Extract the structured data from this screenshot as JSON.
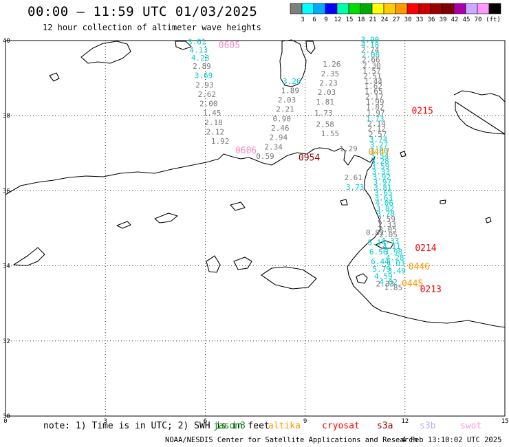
{
  "header": {
    "title": "00:00 – 11:59 UTC 01/03/2025",
    "subtitle": "12 hour collection of altimeter wave heights"
  },
  "scale": {
    "unit": "(ft)",
    "colors": [
      "#7f7f7f",
      "#00ffff",
      "#00aaff",
      "#0000ff",
      "#00ffaa",
      "#00dd00",
      "#00aa00",
      "#ffff00",
      "#ffcc00",
      "#ff9900",
      "#ff0000",
      "#cc0000",
      "#990000",
      "#7f0000",
      "#aa00aa",
      "#ccaaff",
      "#ff99ff",
      "#000000"
    ],
    "labels": [
      "3",
      "6",
      "9",
      "12",
      "15",
      "18",
      "21",
      "24",
      "27",
      "30",
      "33",
      "36",
      "39",
      "42",
      "45",
      "70"
    ]
  },
  "axes": {
    "x_ticks": [
      "0",
      "3",
      "6",
      "9",
      "12",
      "15"
    ],
    "y_ticks": [
      "40",
      "38",
      "36",
      "34",
      "32",
      "30"
    ]
  },
  "note": "note: 1) Time is in UTC; 2) SWH is in feet",
  "missions": [
    {
      "name": "jason3",
      "color": "#009900"
    },
    {
      "name": "altika",
      "color": "#ff9900"
    },
    {
      "name": "cryosat",
      "color": "#ff0000"
    },
    {
      "name": "s3a",
      "color": "#990000"
    },
    {
      "name": "s3b",
      "color": "#bbaaee"
    },
    {
      "name": "swot",
      "color": "#ff99dd"
    }
  ],
  "footer": "NOAA/NESDIS Center for Satellite Applications and Research",
  "timestamp": "4 Feb 13:10:02 UTC 2025",
  "pass_labels": [
    {
      "text": "0605",
      "color": "#ff88cc",
      "lon": 6.4,
      "lat": 39.8
    },
    {
      "text": "0606",
      "color": "#ff88cc",
      "lon": 6.9,
      "lat": 37.0
    },
    {
      "text": "0954",
      "color": "#990000",
      "lon": 8.8,
      "lat": 36.8
    },
    {
      "text": "0215",
      "color": "#ff0000",
      "lon": 12.2,
      "lat": 38.05
    },
    {
      "text": "0447",
      "color": "#ff9900",
      "lon": 10.9,
      "lat": 36.95
    },
    {
      "text": "0214",
      "color": "#ff0000",
      "lon": 12.3,
      "lat": 34.4
    },
    {
      "text": "0446",
      "color": "#ff9900",
      "lon": 12.1,
      "lat": 33.9
    },
    {
      "text": "0445",
      "color": "#ff9900",
      "lon": 11.9,
      "lat": 33.45
    },
    {
      "text": "0213",
      "color": "#ff0000",
      "lon": 12.45,
      "lat": 33.3
    }
  ],
  "wave_heights": [
    {
      "v": "3.61",
      "c": "#00cccc",
      "lon": 5.75,
      "lat": 39.9
    },
    {
      "v": "4.13",
      "c": "#00cccc",
      "lon": 5.8,
      "lat": 39.68
    },
    {
      "v": "4.28",
      "c": "#00cccc",
      "lon": 5.85,
      "lat": 39.47
    },
    {
      "v": "2.89",
      "c": "#777777",
      "lon": 5.9,
      "lat": 39.25
    },
    {
      "v": "3.69",
      "c": "#00cccc",
      "lon": 5.95,
      "lat": 39.0
    },
    {
      "v": "2.93",
      "c": "#777777",
      "lon": 5.98,
      "lat": 38.75
    },
    {
      "v": "2.62",
      "c": "#777777",
      "lon": 6.05,
      "lat": 38.5
    },
    {
      "v": "2.00",
      "c": "#777777",
      "lon": 6.1,
      "lat": 38.25
    },
    {
      "v": "1.45",
      "c": "#777777",
      "lon": 6.2,
      "lat": 38.0
    },
    {
      "v": "2.18",
      "c": "#777777",
      "lon": 6.25,
      "lat": 37.75
    },
    {
      "v": "2.12",
      "c": "#777777",
      "lon": 6.3,
      "lat": 37.5
    },
    {
      "v": "1.92",
      "c": "#777777",
      "lon": 6.45,
      "lat": 37.25
    },
    {
      "v": "3.26",
      "c": "#00cccc",
      "lon": 8.6,
      "lat": 38.85
    },
    {
      "v": "1.89",
      "c": "#777777",
      "lon": 8.55,
      "lat": 38.6
    },
    {
      "v": "2.03",
      "c": "#777777",
      "lon": 8.45,
      "lat": 38.35
    },
    {
      "v": "2.21",
      "c": "#777777",
      "lon": 8.4,
      "lat": 38.1
    },
    {
      "v": "0.90",
      "c": "#777777",
      "lon": 8.3,
      "lat": 37.85
    },
    {
      "v": "2.46",
      "c": "#777777",
      "lon": 8.25,
      "lat": 37.6
    },
    {
      "v": "2.94",
      "c": "#777777",
      "lon": 8.2,
      "lat": 37.35
    },
    {
      "v": "2.34",
      "c": "#777777",
      "lon": 8.05,
      "lat": 37.1
    },
    {
      "v": "0.59",
      "c": "#777777",
      "lon": 7.8,
      "lat": 36.85
    },
    {
      "v": "1.26",
      "c": "#777777",
      "lon": 9.8,
      "lat": 39.3
    },
    {
      "v": "2.35",
      "c": "#777777",
      "lon": 9.75,
      "lat": 39.05
    },
    {
      "v": "2.23",
      "c": "#777777",
      "lon": 9.7,
      "lat": 38.8
    },
    {
      "v": "2.03",
      "c": "#777777",
      "lon": 9.65,
      "lat": 38.55
    },
    {
      "v": "1.81",
      "c": "#777777",
      "lon": 9.6,
      "lat": 38.3
    },
    {
      "v": "1.73",
      "c": "#777777",
      "lon": 9.55,
      "lat": 38.0
    },
    {
      "v": "2.58",
      "c": "#777777",
      "lon": 9.6,
      "lat": 37.7
    },
    {
      "v": "1.55",
      "c": "#777777",
      "lon": 9.75,
      "lat": 37.45
    },
    {
      "v": "1.29",
      "c": "#777777",
      "lon": 10.3,
      "lat": 37.05
    },
    {
      "v": "3.90",
      "c": "#00cccc",
      "lon": 10.95,
      "lat": 39.95
    },
    {
      "v": "4.18",
      "c": "#00cccc",
      "lon": 10.95,
      "lat": 39.82
    },
    {
      "v": "2.74",
      "c": "#777777",
      "lon": 10.95,
      "lat": 39.68
    },
    {
      "v": "2.08",
      "c": "#00cccc",
      "lon": 10.97,
      "lat": 39.55
    },
    {
      "v": "2.66",
      "c": "#777777",
      "lon": 10.98,
      "lat": 39.42
    },
    {
      "v": "2.30",
      "c": "#777777",
      "lon": 11.0,
      "lat": 39.27
    },
    {
      "v": "1.57",
      "c": "#777777",
      "lon": 11.0,
      "lat": 39.12
    },
    {
      "v": "2.51",
      "c": "#777777",
      "lon": 11.02,
      "lat": 38.98
    },
    {
      "v": "1.44",
      "c": "#777777",
      "lon": 11.05,
      "lat": 38.85
    },
    {
      "v": "1.62",
      "c": "#777777",
      "lon": 11.05,
      "lat": 38.72
    },
    {
      "v": "1.65",
      "c": "#777777",
      "lon": 11.06,
      "lat": 38.58
    },
    {
      "v": "2.17",
      "c": "#777777",
      "lon": 11.08,
      "lat": 38.43
    },
    {
      "v": "1.99",
      "c": "#777777",
      "lon": 11.1,
      "lat": 38.3
    },
    {
      "v": "1.82",
      "c": "#777777",
      "lon": 11.1,
      "lat": 38.16
    },
    {
      "v": "1.97",
      "c": "#777777",
      "lon": 11.12,
      "lat": 38.0
    },
    {
      "v": "1.73",
      "c": "#00cccc",
      "lon": 11.1,
      "lat": 37.85
    },
    {
      "v": "2.14",
      "c": "#777777",
      "lon": 11.15,
      "lat": 37.72
    },
    {
      "v": "2.12",
      "c": "#777777",
      "lon": 11.15,
      "lat": 37.58
    },
    {
      "v": "2.57",
      "c": "#777777",
      "lon": 11.18,
      "lat": 37.44
    },
    {
      "v": "3.74",
      "c": "#00cccc",
      "lon": 11.2,
      "lat": 37.3
    },
    {
      "v": "3.27",
      "c": "#00cccc",
      "lon": 11.22,
      "lat": 37.15
    },
    {
      "v": "3.80",
      "c": "#00cccc",
      "lon": 11.22,
      "lat": 37.0
    },
    {
      "v": "3.54",
      "c": "#00cccc",
      "lon": 11.24,
      "lat": 36.86
    },
    {
      "v": "3.28",
      "c": "#00cccc",
      "lon": 11.25,
      "lat": 36.72
    },
    {
      "v": "3.59",
      "c": "#00cccc",
      "lon": 11.26,
      "lat": 36.58
    },
    {
      "v": "3.33",
      "c": "#00cccc",
      "lon": 11.28,
      "lat": 36.44
    },
    {
      "v": "3.92",
      "c": "#00cccc",
      "lon": 11.3,
      "lat": 36.3
    },
    {
      "v": "3.97",
      "c": "#00cccc",
      "lon": 11.32,
      "lat": 36.16
    },
    {
      "v": "3.81",
      "c": "#00cccc",
      "lon": 11.33,
      "lat": 36.02
    },
    {
      "v": "3.65",
      "c": "#00cccc",
      "lon": 11.35,
      "lat": 35.88
    },
    {
      "v": "3.63",
      "c": "#00cccc",
      "lon": 11.36,
      "lat": 35.74
    },
    {
      "v": "4.06",
      "c": "#00cccc",
      "lon": 11.38,
      "lat": 35.6
    },
    {
      "v": "3.82",
      "c": "#00cccc",
      "lon": 11.4,
      "lat": 35.46
    },
    {
      "v": "3.78",
      "c": "#00cccc",
      "lon": 11.42,
      "lat": 35.32
    },
    {
      "v": "2.59",
      "c": "#777777",
      "lon": 11.44,
      "lat": 35.18
    },
    {
      "v": "2.33",
      "c": "#777777",
      "lon": 11.46,
      "lat": 35.04
    },
    {
      "v": "2.05",
      "c": "#777777",
      "lon": 11.48,
      "lat": 34.9
    },
    {
      "v": "2.05",
      "c": "#777777",
      "lon": 11.5,
      "lat": 34.76
    },
    {
      "v": "2.61",
      "c": "#777777",
      "lon": 10.45,
      "lat": 36.28
    },
    {
      "v": "3.73",
      "c": "#00cccc",
      "lon": 10.5,
      "lat": 36.03
    },
    {
      "v": "0.82",
      "c": "#777777",
      "lon": 11.1,
      "lat": 34.82
    },
    {
      "v": "5.14",
      "c": "#00cccc",
      "lon": 11.15,
      "lat": 34.55
    },
    {
      "v": "6.56",
      "c": "#00cccc",
      "lon": 11.2,
      "lat": 34.3
    },
    {
      "v": "6.44",
      "c": "#00cccc",
      "lon": 11.25,
      "lat": 34.05
    },
    {
      "v": "5.79",
      "c": "#00cccc",
      "lon": 11.3,
      "lat": 33.85
    },
    {
      "v": "4.59",
      "c": "#00cccc",
      "lon": 11.35,
      "lat": 33.65
    },
    {
      "v": "4.02",
      "c": "#00cccc",
      "lon": 11.5,
      "lat": 33.5
    },
    {
      "v": "2.33",
      "c": "#777777",
      "lon": 11.4,
      "lat": 33.45
    },
    {
      "v": "1.85",
      "c": "#777777",
      "lon": 11.65,
      "lat": 33.35
    },
    {
      "v": "4.33",
      "c": "#00cccc",
      "lon": 11.55,
      "lat": 34.6
    },
    {
      "v": "4.11",
      "c": "#00cccc",
      "lon": 11.6,
      "lat": 34.45
    },
    {
      "v": "3.98",
      "c": "#00cccc",
      "lon": 11.65,
      "lat": 34.3
    },
    {
      "v": "4.28",
      "c": "#00cccc",
      "lon": 11.7,
      "lat": 34.15
    },
    {
      "v": "4.03",
      "c": "#00cccc",
      "lon": 11.72,
      "lat": 34.0
    },
    {
      "v": "3.49",
      "c": "#00cccc",
      "lon": 11.75,
      "lat": 33.8
    }
  ]
}
